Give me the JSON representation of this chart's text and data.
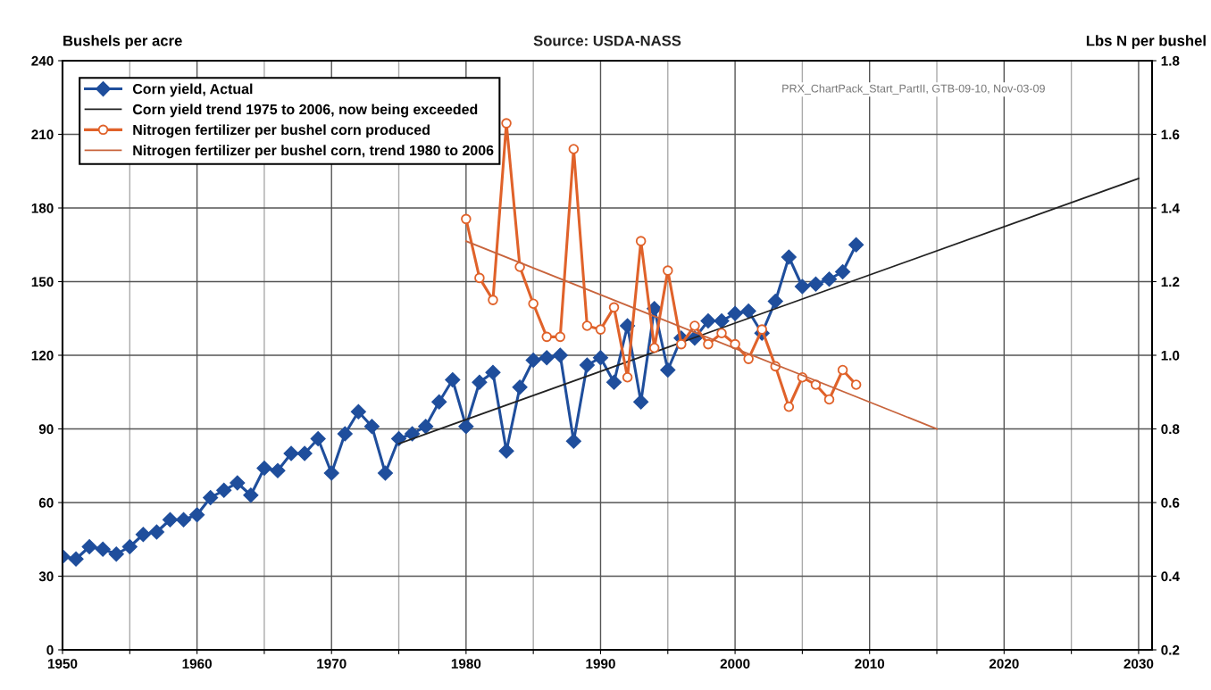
{
  "chart_data": {
    "type": "line",
    "ylabel": "Bushels per acre",
    "y2label": "Lbs N per bushel",
    "annotations": [
      "Source: USDA-NASS",
      "PRX_ChartPack_Start_PartII, GTB-09-10, Nov-03-09"
    ],
    "xlim": [
      1950,
      2031
    ],
    "xticks": [
      1950,
      {
        "value": 1955,
        "label": null
      },
      1960,
      {
        "value": 1965,
        "label": null
      },
      1970,
      {
        "value": 1975,
        "label": null
      },
      1980,
      {
        "value": 1985,
        "label": null
      },
      1990,
      {
        "value": 1995,
        "label": null
      },
      2000,
      {
        "value": 2005,
        "label": null
      },
      2010,
      {
        "value": 2015,
        "label": null
      },
      2020,
      {
        "value": 2025,
        "label": null
      },
      2030
    ],
    "ylim": [
      0,
      240
    ],
    "yticks": [
      0,
      30,
      60,
      90,
      120,
      150,
      180,
      210,
      240
    ],
    "y2lim": [
      0.2,
      1.8
    ],
    "y2ticks": [
      {
        "value": 0.2,
        "label": "0.2"
      },
      {
        "value": 0.4,
        "label": "0.4"
      },
      {
        "value": 0.6,
        "label": "0.6"
      },
      {
        "value": 0.8,
        "label": "0.8"
      },
      {
        "value": 1.0,
        "label": "1.0"
      },
      {
        "value": 1.2,
        "label": "1.2"
      },
      {
        "value": 1.4,
        "label": "1.4"
      },
      {
        "value": 1.6,
        "label": "1.6"
      },
      {
        "value": 1.8,
        "label": "1.8"
      }
    ],
    "grid": true,
    "legend": "top left",
    "series": [
      {
        "name": "Corn yield, Actual",
        "color": "#1f4e9c",
        "marker": "diamond",
        "x": [
          1950,
          1951,
          1952,
          1953,
          1954,
          1955,
          1956,
          1957,
          1958,
          1959,
          1960,
          1961,
          1962,
          1963,
          1964,
          1965,
          1966,
          1967,
          1968,
          1969,
          1970,
          1971,
          1972,
          1973,
          1974,
          1975,
          1976,
          1977,
          1978,
          1979,
          1980,
          1981,
          1982,
          1983,
          1984,
          1985,
          1986,
          1987,
          1988,
          1989,
          1990,
          1991,
          1992,
          1993,
          1994,
          1995,
          1996,
          1997,
          1998,
          1999,
          2000,
          2001,
          2002,
          2003,
          2004,
          2005,
          2006,
          2007,
          2008,
          2009
        ],
        "values": [
          38,
          37,
          42,
          41,
          39,
          42,
          47,
          48,
          53,
          53,
          55,
          62,
          65,
          68,
          63,
          74,
          73,
          80,
          80,
          86,
          72,
          88,
          97,
          91,
          72,
          86,
          88,
          91,
          101,
          110,
          91,
          109,
          113,
          81,
          107,
          118,
          119,
          120,
          85,
          116,
          119,
          109,
          132,
          101,
          139,
          114,
          127,
          127,
          134,
          134,
          137,
          138,
          129,
          142,
          160,
          148,
          149,
          151,
          154,
          165
        ]
      },
      {
        "name": "Corn yield trend 1975 to 2006, now being exceeded",
        "color": "#222222",
        "marker": "none",
        "x": [
          1975,
          2030
        ],
        "values": [
          84,
          192
        ]
      },
      {
        "name": "Nitrogen fertilizer per bushel corn produced",
        "color": "#e0622a",
        "marker": "circle",
        "axis": "y2",
        "x": [
          1980,
          1981,
          1982,
          1983,
          1984,
          1985,
          1986,
          1987,
          1988,
          1989,
          1990,
          1991,
          1992,
          1993,
          1994,
          1995,
          1996,
          1997,
          1998,
          1999,
          2000,
          2001,
          2002,
          2003,
          2004,
          2005,
          2006,
          2007,
          2008,
          2009
        ],
        "values": [
          1.37,
          1.21,
          1.15,
          1.63,
          1.24,
          1.14,
          1.05,
          1.05,
          1.56,
          1.08,
          1.07,
          1.13,
          0.94,
          1.31,
          1.02,
          1.23,
          1.03,
          1.08,
          1.03,
          1.06,
          1.03,
          0.99,
          1.07,
          0.97,
          0.86,
          0.94,
          0.92,
          0.88,
          0.96,
          0.92
        ]
      },
      {
        "name": "Nitrogen fertilizer per bushel corn, trend 1980 to 2006",
        "color": "#c8643c",
        "marker": "none",
        "axis": "y2",
        "x": [
          1980,
          2015
        ],
        "values": [
          1.31,
          0.8
        ]
      }
    ]
  }
}
